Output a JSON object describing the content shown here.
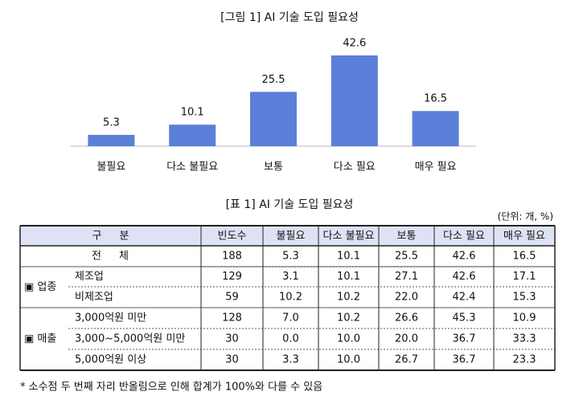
{
  "chart_data": {
    "type": "bar",
    "title": "[그림 1] AI 기술 도입 필요성",
    "categories": [
      "불필요",
      "다소 불필요",
      "보통",
      "다소 필요",
      "매우 필요"
    ],
    "values": [
      5.3,
      10.1,
      25.5,
      42.6,
      16.5
    ],
    "color": "#5b7fd8"
  },
  "table": {
    "title": "[표 1] AI 기술 도입 필요성",
    "unit": "(단위: 개, %)",
    "columns": [
      "구 분",
      "빈도수",
      "불필요",
      "다소 불필요",
      "보통",
      "다소 필요",
      "매우 필요"
    ],
    "total": {
      "label": "전 체",
      "values": [
        "188",
        "5.3",
        "10.1",
        "25.5",
        "42.6",
        "16.5"
      ]
    },
    "groups": [
      {
        "label": "▣ 업종",
        "rows": [
          {
            "label": "제조업",
            "values": [
              "129",
              "3.1",
              "10.1",
              "27.1",
              "42.6",
              "17.1"
            ]
          },
          {
            "label": "비제조업",
            "values": [
              "59",
              "10.2",
              "10.2",
              "22.0",
              "42.4",
              "15.3"
            ]
          }
        ]
      },
      {
        "label": "▣ 매출",
        "rows": [
          {
            "label": "3,000억원 미만",
            "values": [
              "128",
              "7.0",
              "10.2",
              "26.6",
              "45.3",
              "10.9"
            ]
          },
          {
            "label": "3,000~5,000억원 미만",
            "values": [
              "30",
              "0.0",
              "10.0",
              "20.0",
              "36.7",
              "33.3"
            ]
          },
          {
            "label": "5,000억원 이상",
            "values": [
              "30",
              "3.3",
              "10.0",
              "26.7",
              "36.7",
              "23.3"
            ]
          }
        ]
      }
    ]
  },
  "footnote": "* 소수점 두 번째 자리 반올림으로 인해 합계가 100%와 다를 수 있음"
}
